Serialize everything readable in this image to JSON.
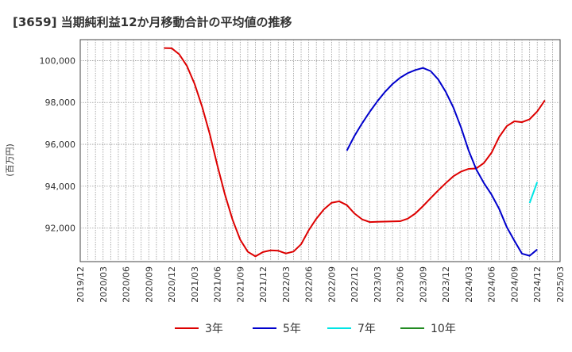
{
  "chart_data": {
    "type": "line",
    "title": "[3659]  当期純利益12か月移動合計の平均値の推移",
    "ylabel": "(百万円)",
    "xlabel": "",
    "ylim": [
      90400,
      101000
    ],
    "yticks": [
      92000,
      94000,
      96000,
      98000,
      100000
    ],
    "ytick_labels": [
      "92,000",
      "94,000",
      "96,000",
      "98,000",
      "100,000"
    ],
    "x_start": "2019-12",
    "x_end": "2025-03",
    "xtick_labels": [
      "2019/12",
      "2020/03",
      "2020/06",
      "2020/09",
      "2020/12",
      "2021/03",
      "2021/06",
      "2021/09",
      "2021/12",
      "2022/03",
      "2022/06",
      "2022/09",
      "2022/12",
      "2023/03",
      "2023/06",
      "2023/09",
      "2023/12",
      "2024/03",
      "2024/06",
      "2024/09",
      "2024/12",
      "2025/03"
    ],
    "grid": true,
    "legend_position": "bottom",
    "series": [
      {
        "name": "3年",
        "color": "#dd0000",
        "start": "2020-11",
        "values": [
          100600,
          100590,
          100300,
          99750,
          98900,
          97800,
          96500,
          95000,
          93600,
          92400,
          91450,
          90870,
          90650,
          90860,
          90940,
          90920,
          90790,
          90880,
          91230,
          91900,
          92450,
          92900,
          93210,
          93280,
          93100,
          92700,
          92420,
          92290,
          92300,
          92310,
          92320,
          92330,
          92450,
          92700,
          93050,
          93430,
          93800,
          94150,
          94480,
          94700,
          94830,
          94850,
          95110,
          95600,
          96350,
          96870,
          97100,
          97060,
          97200,
          97570,
          98100
        ]
      },
      {
        "name": "5年",
        "color": "#0000cc",
        "start": "2022-11",
        "values": [
          95700,
          96400,
          97000,
          97550,
          98050,
          98500,
          98880,
          99180,
          99400,
          99550,
          99650,
          99500,
          99100,
          98500,
          97750,
          96800,
          95700,
          94800,
          94150,
          93600,
          92920,
          92050,
          91400,
          90780,
          90680,
          90980
        ]
      },
      {
        "name": "7年",
        "color": "#00e5e5",
        "start": "2024-11",
        "values": [
          93200,
          94200
        ]
      },
      {
        "name": "10年",
        "color": "#228b22",
        "start": "2024-12",
        "values": []
      }
    ]
  }
}
